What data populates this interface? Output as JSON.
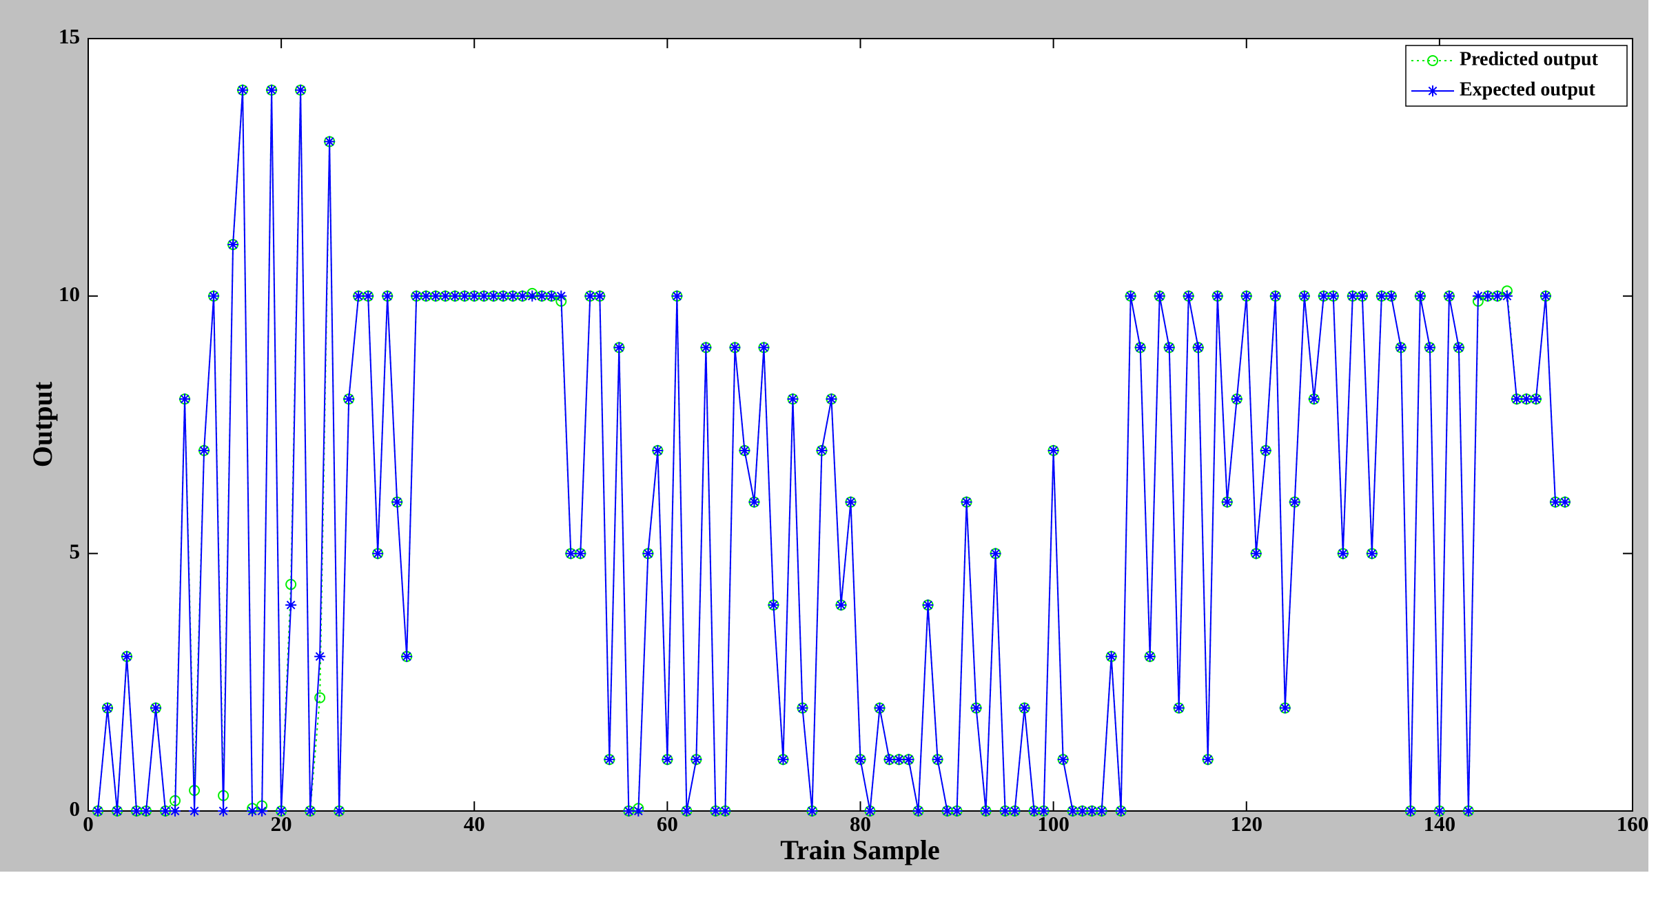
{
  "chart_data": {
    "type": "line",
    "x_label": "Train Sample",
    "y_label": "Output",
    "x": [
      1,
      2,
      3,
      4,
      5,
      6,
      7,
      8,
      9,
      10,
      11,
      12,
      13,
      14,
      15,
      16,
      17,
      18,
      19,
      20,
      21,
      22,
      23,
      24,
      25,
      26,
      27,
      28,
      29,
      30,
      31,
      32,
      33,
      34,
      35,
      36,
      37,
      38,
      39,
      40,
      41,
      42,
      43,
      44,
      45,
      46,
      47,
      48,
      49,
      50,
      51,
      52,
      53,
      54,
      55,
      56,
      57,
      58,
      59,
      60,
      61,
      62,
      63,
      64,
      65,
      66,
      67,
      68,
      69,
      70,
      71,
      72,
      73,
      74,
      75,
      76,
      77,
      78,
      79,
      80,
      81,
      82,
      83,
      84,
      85,
      86,
      87,
      88,
      89,
      90,
      91,
      92,
      93,
      94,
      95,
      96,
      97,
      98,
      99,
      100,
      101,
      102,
      103,
      104,
      105,
      106,
      107,
      108,
      109,
      110,
      111,
      112,
      113,
      114,
      115,
      116,
      117,
      118,
      119,
      120,
      121,
      122,
      123,
      124,
      125,
      126,
      127,
      128,
      129,
      130,
      131,
      132,
      133,
      134,
      135,
      136,
      137,
      138,
      139,
      140,
      141,
      142,
      143,
      144,
      145,
      146,
      147,
      148,
      149,
      150,
      151,
      152,
      153
    ],
    "series": [
      {
        "name": "Predicted output",
        "color": "#00ee00",
        "style": "dotted",
        "marker": "circle",
        "values": [
          0,
          2,
          0,
          3,
          0,
          0,
          2,
          0,
          0.2,
          8,
          0.4,
          7,
          10,
          0.3,
          11,
          14,
          0.05,
          0.1,
          14,
          0,
          4.4,
          14,
          0,
          2.2,
          13,
          0,
          8,
          10,
          10,
          5,
          10,
          6,
          3,
          10,
          10,
          10,
          10,
          10,
          10,
          10,
          10,
          10,
          10,
          10,
          10,
          10.05,
          10,
          10,
          9.9,
          5,
          5,
          10,
          10,
          1,
          9,
          0,
          0.05,
          5,
          7,
          1,
          10,
          0,
          1,
          9,
          0,
          0,
          9,
          7,
          6,
          9,
          4,
          1,
          8,
          2,
          0,
          7,
          8,
          4,
          6,
          1,
          0,
          2,
          1,
          1,
          1,
          0,
          4,
          1,
          0,
          0,
          6,
          2,
          0,
          5,
          0,
          0,
          2,
          0,
          0,
          7,
          1,
          0,
          0,
          0,
          0,
          3,
          0,
          10,
          9,
          3,
          10,
          9,
          2,
          10,
          9,
          1,
          10,
          6,
          8,
          10,
          5,
          7,
          10,
          2,
          6,
          10,
          8,
          10,
          10,
          5,
          10,
          10,
          5,
          10,
          10,
          9,
          0,
          10,
          9,
          0,
          10,
          9,
          0,
          9.9,
          10,
          10,
          10.1,
          8,
          8,
          8,
          10,
          6,
          6
        ]
      },
      {
        "name": "Expected output",
        "color": "#0000ff",
        "style": "solid",
        "marker": "asterisk",
        "values": [
          0,
          2,
          0,
          3,
          0,
          0,
          2,
          0,
          0,
          8,
          0,
          7,
          10,
          0,
          11,
          14,
          0,
          0,
          14,
          0,
          4,
          14,
          0,
          3,
          13,
          0,
          8,
          10,
          10,
          5,
          10,
          6,
          3,
          10,
          10,
          10,
          10,
          10,
          10,
          10,
          10,
          10,
          10,
          10,
          10,
          10,
          10,
          10,
          10,
          5,
          5,
          10,
          10,
          1,
          9,
          0,
          0,
          5,
          7,
          1,
          10,
          0,
          1,
          9,
          0,
          0,
          9,
          7,
          6,
          9,
          4,
          1,
          8,
          2,
          0,
          7,
          8,
          4,
          6,
          1,
          0,
          2,
          1,
          1,
          1,
          0,
          4,
          1,
          0,
          0,
          6,
          2,
          0,
          5,
          0,
          0,
          2,
          0,
          0,
          7,
          1,
          0,
          0,
          0,
          0,
          3,
          0,
          10,
          9,
          3,
          10,
          9,
          2,
          10,
          9,
          1,
          10,
          6,
          8,
          10,
          5,
          7,
          10,
          2,
          6,
          10,
          8,
          10,
          10,
          5,
          10,
          10,
          5,
          10,
          10,
          9,
          0,
          10,
          9,
          0,
          10,
          9,
          0,
          10,
          10,
          10,
          10,
          8,
          8,
          8,
          10,
          6,
          6
        ]
      }
    ],
    "xlim": [
      0,
      160
    ],
    "xticks": [
      0,
      20,
      40,
      60,
      80,
      100,
      120,
      140,
      160
    ],
    "ylim": [
      0,
      15
    ],
    "yticks": [
      0,
      5,
      10,
      15
    ],
    "legend": "upper right"
  }
}
